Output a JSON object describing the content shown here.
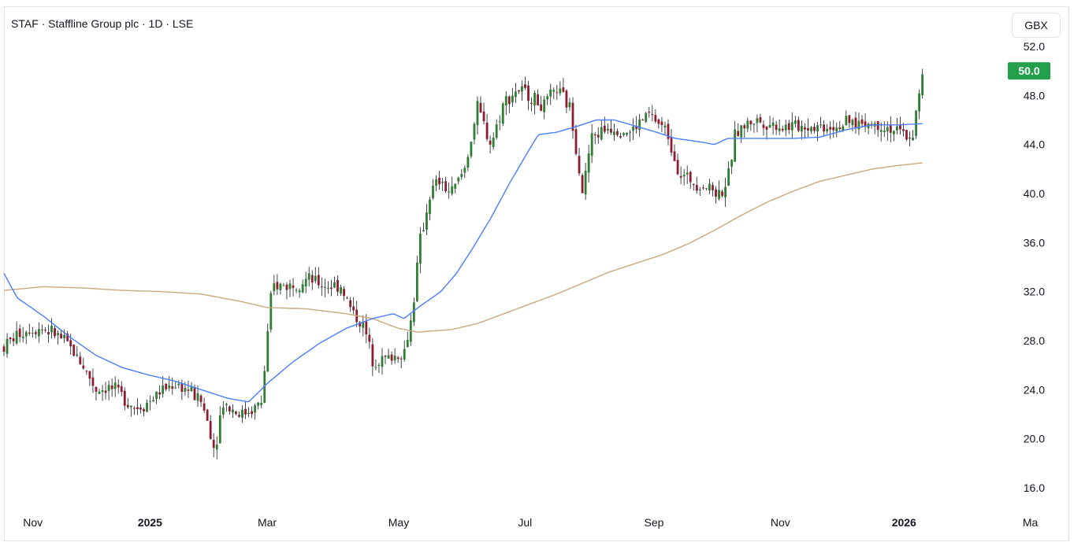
{
  "header": {
    "title": "STAF · Staffline Group plc · 1D · LSE",
    "currency_label": "GBX"
  },
  "colors": {
    "up": "#26a69a",
    "up_body": "#2e7d32",
    "down": "#8e1b2e",
    "wick": "#131722",
    "ma50": "#4a7dff",
    "ma200": "#c8a97e",
    "price_badge": "#22a04a"
  },
  "chart_data": {
    "type": "candlestick",
    "y_axis": {
      "min": 15,
      "max": 53,
      "ticks": [
        "52.0",
        "48.0",
        "44.0",
        "40.0",
        "36.0",
        "32.0",
        "28.0",
        "24.0",
        "20.0",
        "16.0"
      ],
      "tick_values": [
        52,
        48,
        44,
        40,
        36,
        32,
        28,
        24,
        20,
        16
      ]
    },
    "x_axis": {
      "labels": [
        {
          "text": "Nov",
          "t": 0.11,
          "bold": false
        },
        {
          "text": "2025",
          "t": 0.555,
          "bold": true
        },
        {
          "text": "Mar",
          "t": 1.0,
          "bold": false
        },
        {
          "text": "May",
          "t": 1.5,
          "bold": false
        },
        {
          "text": "Jul",
          "t": 1.98,
          "bold": false
        },
        {
          "text": "Sep",
          "t": 2.47,
          "bold": false
        },
        {
          "text": "Nov",
          "t": 2.95,
          "bold": false
        },
        {
          "text": "2026",
          "t": 3.42,
          "bold": true
        },
        {
          "text": "Ma",
          "t": 3.9,
          "bold": false
        }
      ]
    },
    "last_price": "50.0",
    "last_value": 50,
    "series_anchors": {
      "price": [
        [
          0,
          27.5
        ],
        [
          0.05,
          28.5
        ],
        [
          0.1,
          29.0
        ],
        [
          0.15,
          29.0
        ],
        [
          0.2,
          28.5
        ],
        [
          0.25,
          27.5
        ],
        [
          0.3,
          26.0
        ],
        [
          0.35,
          24.0
        ],
        [
          0.4,
          24.2
        ],
        [
          0.45,
          23.5
        ],
        [
          0.5,
          22.5
        ],
        [
          0.55,
          23.0
        ],
        [
          0.6,
          24.0
        ],
        [
          0.65,
          24.5
        ],
        [
          0.7,
          24.0
        ],
        [
          0.75,
          23.0
        ],
        [
          0.78,
          21.0
        ],
        [
          0.8,
          19.0
        ],
        [
          0.83,
          23.0
        ],
        [
          0.86,
          22.5
        ],
        [
          0.9,
          22.0
        ],
        [
          0.95,
          22.5
        ],
        [
          0.98,
          23.0
        ],
        [
          1.0,
          28.0
        ],
        [
          1.02,
          32.5
        ],
        [
          1.08,
          32.5
        ],
        [
          1.15,
          33.0
        ],
        [
          1.22,
          32.5
        ],
        [
          1.28,
          32.5
        ],
        [
          1.32,
          30.5
        ],
        [
          1.37,
          29.0
        ],
        [
          1.4,
          26.5
        ],
        [
          1.45,
          26.5
        ],
        [
          1.52,
          27.0
        ],
        [
          1.55,
          30.0
        ],
        [
          1.58,
          36.0
        ],
        [
          1.62,
          40.0
        ],
        [
          1.65,
          41.0
        ],
        [
          1.7,
          40.0
        ],
        [
          1.75,
          42.0
        ],
        [
          1.8,
          47.0
        ],
        [
          1.85,
          44.0
        ],
        [
          1.9,
          47.5
        ],
        [
          1.95,
          48.5
        ],
        [
          2.0,
          48.0
        ],
        [
          2.05,
          47.0
        ],
        [
          2.1,
          48.5
        ],
        [
          2.15,
          47.0
        ],
        [
          2.18,
          43.0
        ],
        [
          2.2,
          40.0
        ],
        [
          2.23,
          44.5
        ],
        [
          2.3,
          45.5
        ],
        [
          2.38,
          45.0
        ],
        [
          2.45,
          46.5
        ],
        [
          2.52,
          45.0
        ],
        [
          2.57,
          41.5
        ],
        [
          2.62,
          41.0
        ],
        [
          2.68,
          40.5
        ],
        [
          2.72,
          40.0
        ],
        [
          2.75,
          41.0
        ],
        [
          2.78,
          45.0
        ],
        [
          2.85,
          46.0
        ],
        [
          2.95,
          45.5
        ],
        [
          3.05,
          45.5
        ],
        [
          3.15,
          45.5
        ],
        [
          3.25,
          45.8
        ],
        [
          3.35,
          45.5
        ],
        [
          3.4,
          45.0
        ],
        [
          3.45,
          44.5
        ],
        [
          3.47,
          47.0
        ],
        [
          3.49,
          49.5
        ]
      ],
      "ma50": [
        [
          0,
          33.5
        ],
        [
          0.05,
          31.5
        ],
        [
          0.15,
          30.0
        ],
        [
          0.25,
          28.3
        ],
        [
          0.35,
          26.8
        ],
        [
          0.45,
          25.8
        ],
        [
          0.55,
          25.2
        ],
        [
          0.65,
          24.7
        ],
        [
          0.75,
          24.0
        ],
        [
          0.85,
          23.3
        ],
        [
          0.93,
          23.0
        ],
        [
          1.0,
          24.5
        ],
        [
          1.1,
          26.3
        ],
        [
          1.2,
          27.8
        ],
        [
          1.3,
          29.0
        ],
        [
          1.4,
          29.8
        ],
        [
          1.48,
          30.2
        ],
        [
          1.52,
          29.8
        ],
        [
          1.58,
          30.8
        ],
        [
          1.66,
          32.0
        ],
        [
          1.72,
          33.5
        ],
        [
          1.78,
          35.5
        ],
        [
          1.85,
          38.0
        ],
        [
          1.92,
          40.8
        ],
        [
          1.98,
          43.0
        ],
        [
          2.03,
          44.8
        ],
        [
          2.1,
          45.0
        ],
        [
          2.18,
          45.5
        ],
        [
          2.25,
          46.0
        ],
        [
          2.32,
          46.0
        ],
        [
          2.4,
          45.5
        ],
        [
          2.48,
          45.0
        ],
        [
          2.55,
          44.5
        ],
        [
          2.65,
          44.2
        ],
        [
          2.7,
          44.0
        ],
        [
          2.75,
          44.5
        ],
        [
          2.82,
          44.5
        ],
        [
          2.9,
          44.5
        ],
        [
          3.0,
          44.5
        ],
        [
          3.1,
          44.6
        ],
        [
          3.2,
          45.2
        ],
        [
          3.3,
          45.6
        ],
        [
          3.4,
          45.6
        ],
        [
          3.49,
          45.7
        ]
      ],
      "ma200": [
        [
          0,
          32.1
        ],
        [
          0.15,
          32.4
        ],
        [
          0.3,
          32.3
        ],
        [
          0.45,
          32.1
        ],
        [
          0.6,
          32.0
        ],
        [
          0.75,
          31.8
        ],
        [
          0.9,
          31.2
        ],
        [
          1.0,
          30.7
        ],
        [
          1.15,
          30.6
        ],
        [
          1.3,
          30.2
        ],
        [
          1.4,
          29.8
        ],
        [
          1.5,
          29.0
        ],
        [
          1.57,
          28.7
        ],
        [
          1.7,
          28.9
        ],
        [
          1.8,
          29.4
        ],
        [
          1.9,
          30.2
        ],
        [
          2.0,
          31.0
        ],
        [
          2.1,
          31.8
        ],
        [
          2.2,
          32.7
        ],
        [
          2.3,
          33.6
        ],
        [
          2.4,
          34.3
        ],
        [
          2.5,
          35.0
        ],
        [
          2.6,
          35.9
        ],
        [
          2.7,
          37.0
        ],
        [
          2.8,
          38.2
        ],
        [
          2.9,
          39.3
        ],
        [
          3.0,
          40.2
        ],
        [
          3.1,
          41.0
        ],
        [
          3.2,
          41.5
        ],
        [
          3.3,
          42.0
        ],
        [
          3.4,
          42.3
        ],
        [
          3.49,
          42.5
        ]
      ]
    }
  }
}
